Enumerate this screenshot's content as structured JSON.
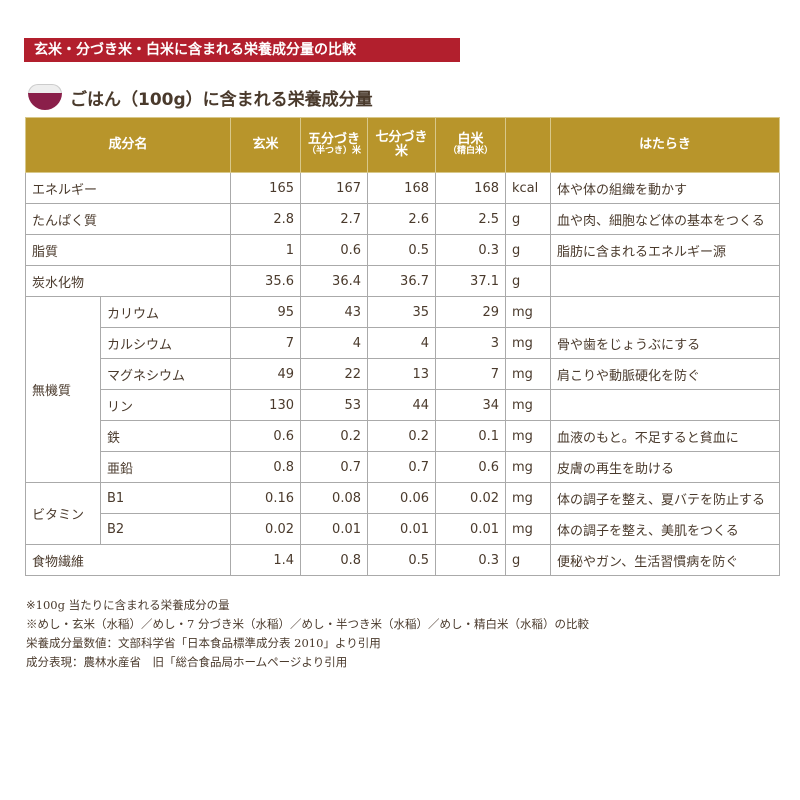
{
  "banner": "玄米・分づき米・白米に含まれる栄養成分量の比較",
  "subtitle": "ごはん（100g）に含まれる栄養成分量",
  "headers": {
    "name": "成分名",
    "genmai": "玄米",
    "gobu": "五分づき",
    "gobu_sub": "（半つき）米",
    "nanabu": "七分づき",
    "nanabu_sub": "米",
    "hakumai": "白米",
    "hakumai_sub": "（精白米）",
    "role": "はたらき"
  },
  "groups": {
    "minerals": "無機質",
    "vitamins": "ビタミン"
  },
  "rows": [
    {
      "name": "エネルギー",
      "v": [
        "165",
        "167",
        "168",
        "168"
      ],
      "unit": "kcal",
      "role": "体や体の組織を動かす"
    },
    {
      "name": "たんぱく質",
      "v": [
        "2.8",
        "2.7",
        "2.6",
        "2.5"
      ],
      "unit": "g",
      "role": "血や肉、細胞など体の基本をつくる"
    },
    {
      "name": "脂質",
      "v": [
        "1",
        "0.6",
        "0.5",
        "0.3"
      ],
      "unit": "g",
      "role": "脂肪に含まれるエネルギー源"
    },
    {
      "name": "炭水化物",
      "v": [
        "35.6",
        "36.4",
        "36.7",
        "37.1"
      ],
      "unit": "g",
      "role": ""
    },
    {
      "name": "カリウム",
      "v": [
        "95",
        "43",
        "35",
        "29"
      ],
      "unit": "mg",
      "role": ""
    },
    {
      "name": "カルシウム",
      "v": [
        "7",
        "4",
        "4",
        "3"
      ],
      "unit": "mg",
      "role": "骨や歯をじょうぶにする"
    },
    {
      "name": "マグネシウム",
      "v": [
        "49",
        "22",
        "13",
        "7"
      ],
      "unit": "mg",
      "role": "肩こりや動脈硬化を防ぐ"
    },
    {
      "name": "リン",
      "v": [
        "130",
        "53",
        "44",
        "34"
      ],
      "unit": "mg",
      "role": ""
    },
    {
      "name": "鉄",
      "v": [
        "0.6",
        "0.2",
        "0.2",
        "0.1"
      ],
      "unit": "mg",
      "role": "血液のもと。不足すると貧血に"
    },
    {
      "name": "亜鉛",
      "v": [
        "0.8",
        "0.7",
        "0.7",
        "0.6"
      ],
      "unit": "mg",
      "role": "皮膚の再生を助ける"
    },
    {
      "name": "B1",
      "v": [
        "0.16",
        "0.08",
        "0.06",
        "0.02"
      ],
      "unit": "mg",
      "role": "体の調子を整え、夏バテを防止する"
    },
    {
      "name": "B2",
      "v": [
        "0.02",
        "0.01",
        "0.01",
        "0.01"
      ],
      "unit": "mg",
      "role": "体の調子を整え、美肌をつくる"
    },
    {
      "name": "食物繊維",
      "v": [
        "1.4",
        "0.8",
        "0.5",
        "0.3"
      ],
      "unit": "g",
      "role": "便秘やガン、生活習慣病を防ぐ"
    }
  ],
  "notes": [
    "※100g 当たりに含まれる栄養成分の量",
    "※めし・玄米（水稲）／めし・7 分づき米（水稲）／めし・半つき米（水稲）／めし・精白米（水稲）の比較",
    "栄養成分量数値：文部科学省「日本食品標準成分表 2010」より引用",
    "成分表現：農林水産省　旧「総合食品局ホームページより引用"
  ]
}
